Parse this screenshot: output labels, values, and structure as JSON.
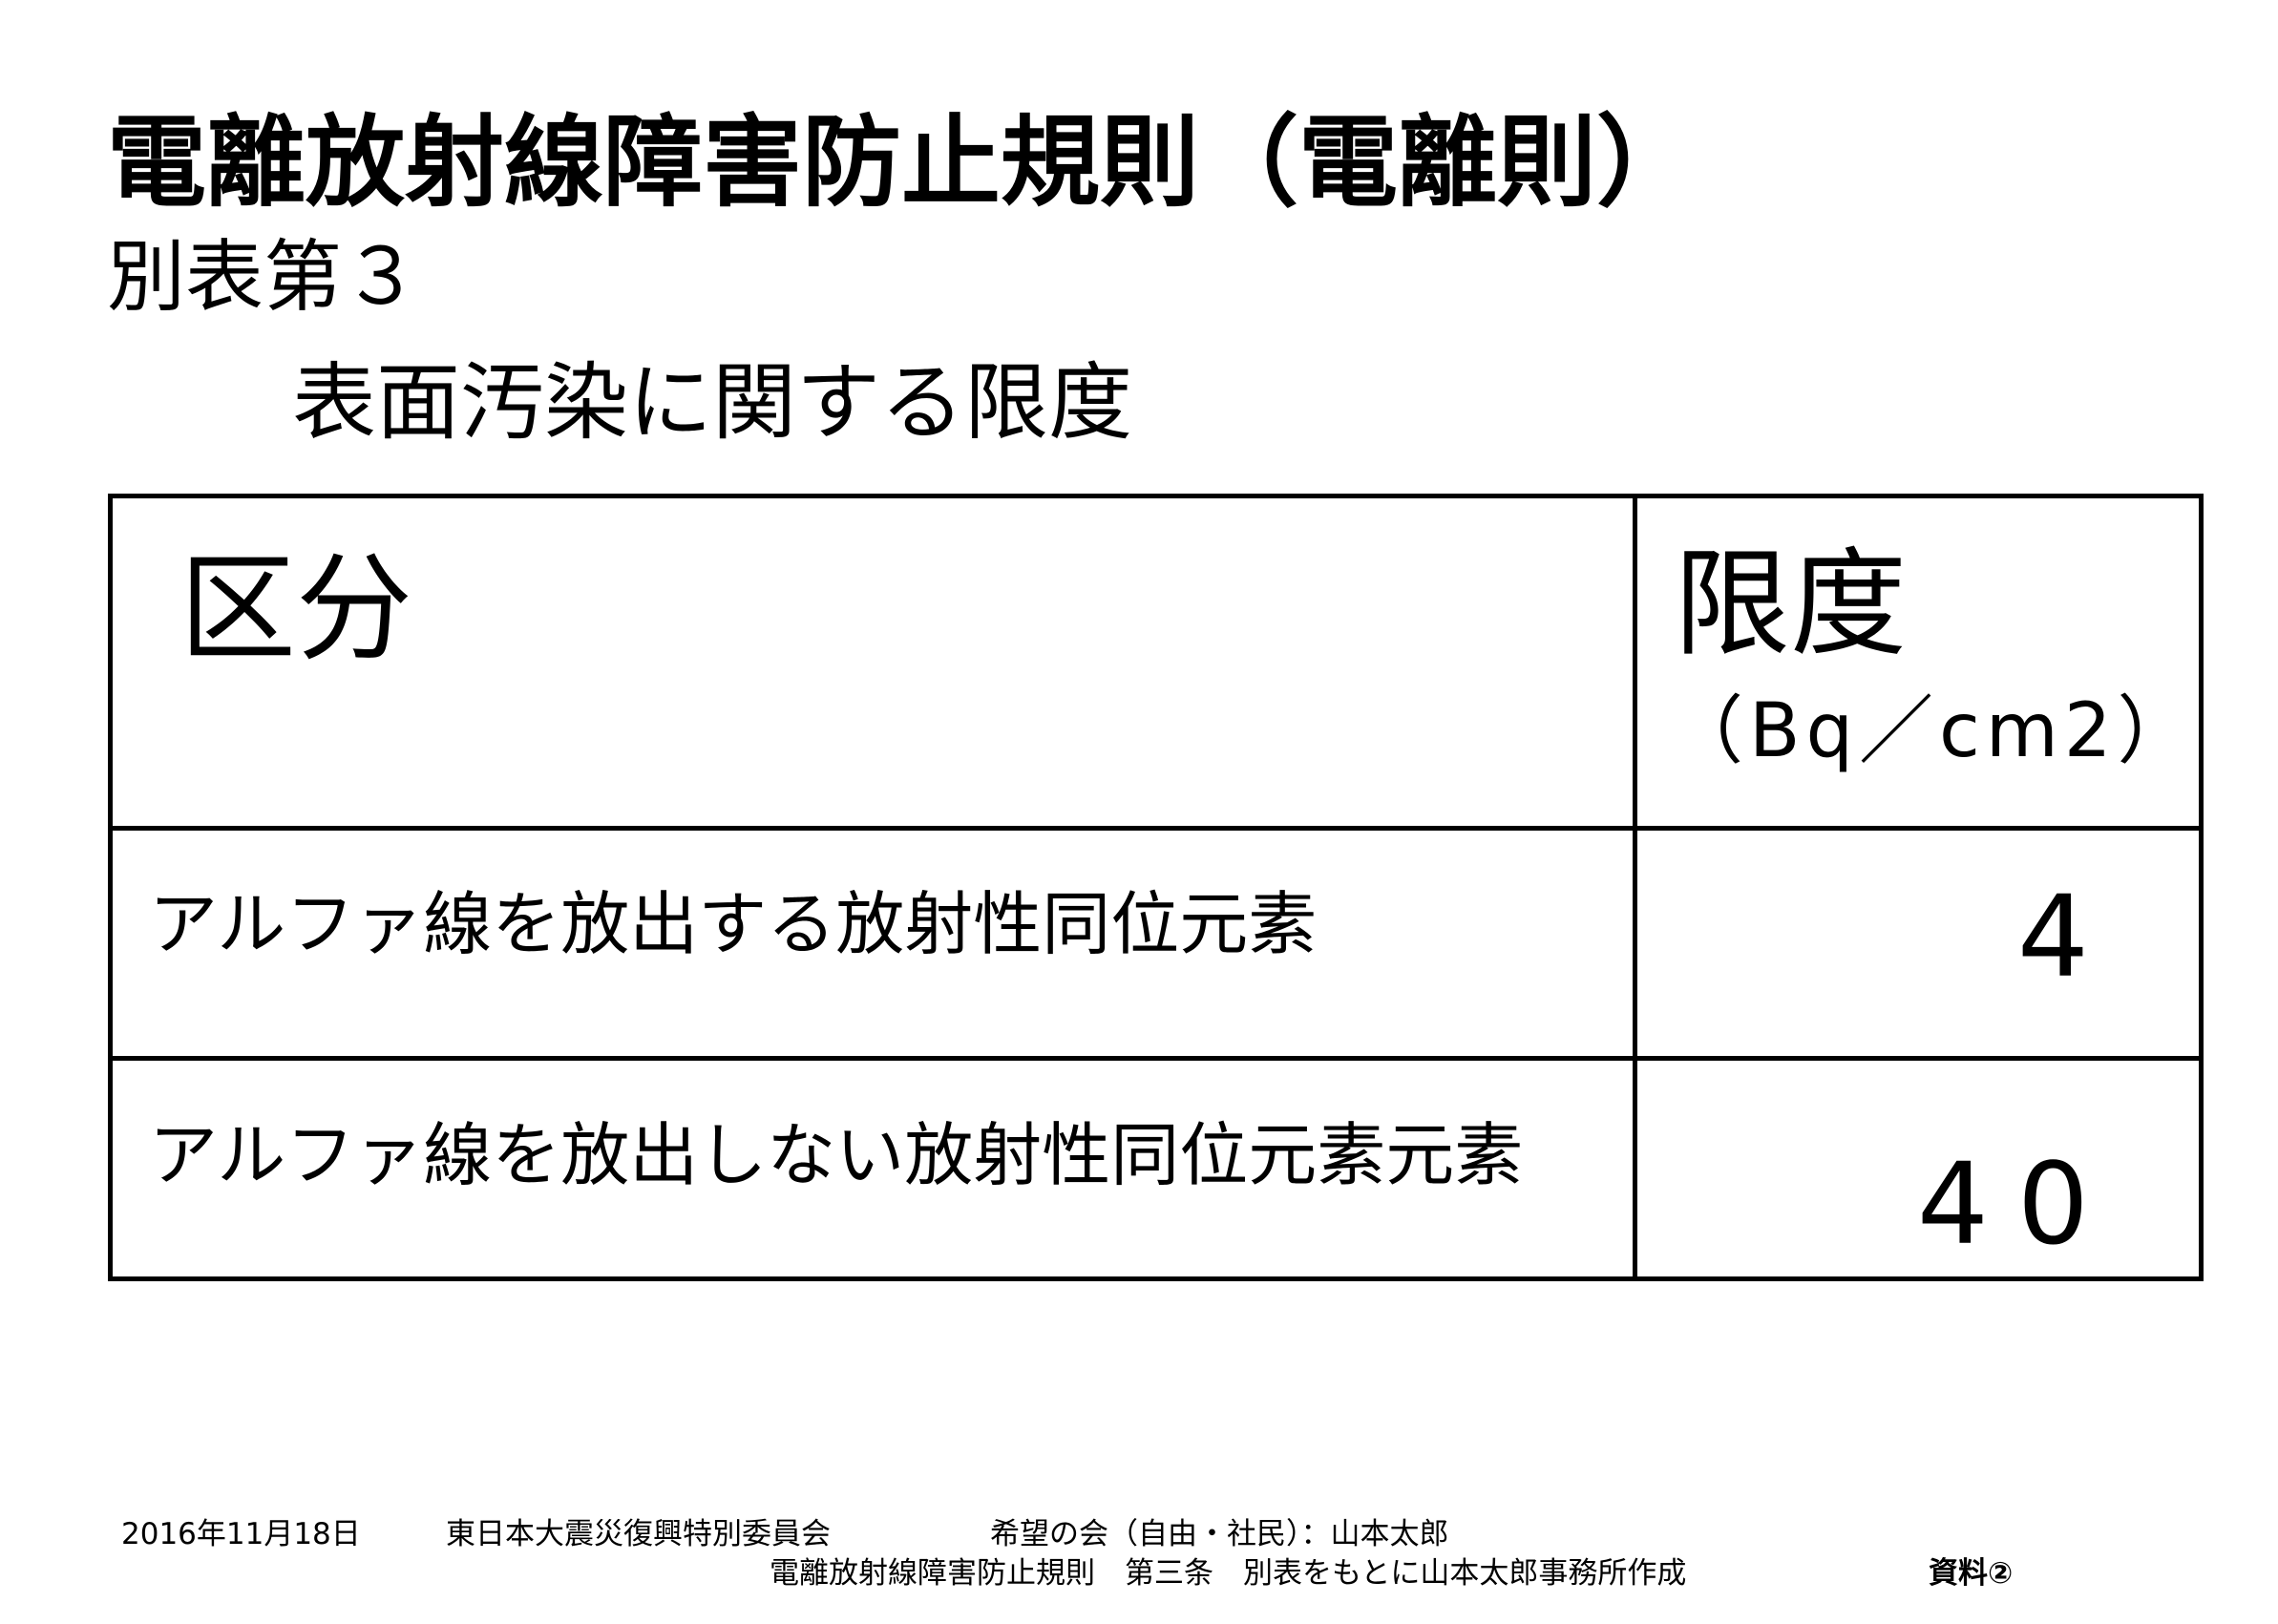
{
  "title": "電離放射線障害防止規則（電離則）",
  "subtitle": "別表第３",
  "heading": "表面汚染に関する限度",
  "table": {
    "headers": {
      "category": "区分",
      "limit": "限度",
      "unit": "（Bq／cm2）"
    },
    "rows": [
      {
        "category": "アルファ線を放出する放射性同位元素",
        "limit": "4"
      },
      {
        "category": "アルファ線を放出しない放射性同位元素元素",
        "limit": "40"
      }
    ]
  },
  "footer": {
    "date": "2016年11月18日",
    "committee": "東日本大震災復興特別委員会",
    "speaker": "希望の会（自由・社民）：山本太郎",
    "source": "電離放射線障害防止規則　第三条　別表をもとに山本太郎事務所作成",
    "doc_label": "資料②"
  }
}
